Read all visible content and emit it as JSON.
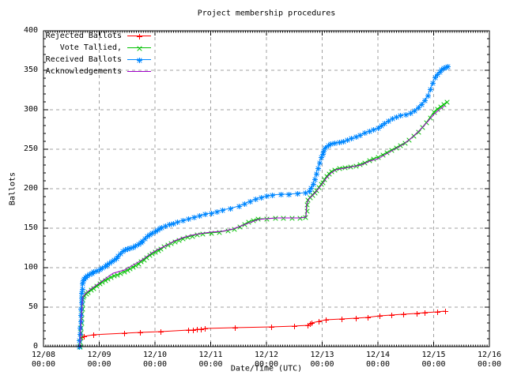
{
  "chart_data": {
    "type": "line",
    "title": "Project membership procedures",
    "xlabel": "Date/Time (UTC)",
    "ylabel": "Ballots",
    "ylim": [
      0,
      400
    ],
    "y_major_step": 50,
    "y_minor_step": 10,
    "x_range_days": 8,
    "x_minor_per_day": 24,
    "grid": true,
    "grid_color": "#a0a0a0",
    "legend_position": "top-left",
    "x_ticks": [
      {
        "date": "12/08",
        "time": "00:00"
      },
      {
        "date": "12/09",
        "time": "00:00"
      },
      {
        "date": "12/10",
        "time": "00:00"
      },
      {
        "date": "12/11",
        "time": "00:00"
      },
      {
        "date": "12/12",
        "time": "00:00"
      },
      {
        "date": "12/13",
        "time": "00:00"
      },
      {
        "date": "12/14",
        "time": "00:00"
      },
      {
        "date": "12/15",
        "time": "00:00"
      },
      {
        "date": "12/16",
        "time": "00:00"
      }
    ],
    "y_ticks": [
      0,
      50,
      100,
      150,
      200,
      250,
      300,
      350,
      400
    ],
    "x_unit_note": "x values are fractional days after 12/08 00:00 UTC",
    "series": [
      {
        "name": "Rejected Ballots",
        "color": "#ff0000",
        "marker": "plus",
        "x": [
          0.68,
          0.73,
          0.89,
          1.45,
          1.73,
          2.1,
          2.6,
          2.68,
          2.75,
          2.82,
          2.9,
          3.43,
          4.09,
          4.5,
          4.74,
          4.78,
          4.81,
          4.94,
          5.06,
          5.35,
          5.6,
          5.81,
          6.03,
          6.24,
          6.45,
          6.69,
          6.83,
          7.06,
          7.2
        ],
        "y": [
          12,
          13,
          15,
          17,
          18,
          19,
          21,
          21,
          22,
          22,
          23,
          24,
          25,
          26,
          27,
          29,
          30,
          32,
          34,
          35,
          36,
          37,
          39,
          40,
          41,
          42,
          43,
          44,
          45
        ]
      },
      {
        "name": "Vote Tallied,",
        "color": "#00c000",
        "marker": "cross",
        "x": [
          0.65,
          0.655,
          0.66,
          0.665,
          0.67,
          0.675,
          0.68,
          0.685,
          0.69,
          0.695,
          0.7,
          0.71,
          0.73,
          0.76,
          0.8,
          0.85,
          0.9,
          0.95,
          1.0,
          1.05,
          1.1,
          1.15,
          1.2,
          1.26,
          1.32,
          1.38,
          1.44,
          1.5,
          1.55,
          1.6,
          1.65,
          1.7,
          1.75,
          1.8,
          1.85,
          1.9,
          1.95,
          2.0,
          2.05,
          2.1,
          2.16,
          2.22,
          2.28,
          2.35,
          2.42,
          2.5,
          2.58,
          2.66,
          2.75,
          2.85,
          3.0,
          3.15,
          3.3,
          3.42,
          3.52,
          3.6,
          3.68,
          3.76,
          3.85,
          4.0,
          4.15,
          4.3,
          4.45,
          4.6,
          4.7,
          4.72,
          4.73,
          4.74,
          4.78,
          4.82,
          4.86,
          4.9,
          4.94,
          4.98,
          5.0,
          5.04,
          5.08,
          5.12,
          5.16,
          5.22,
          5.3,
          5.4,
          5.5,
          5.6,
          5.68,
          5.76,
          5.84,
          5.92,
          6.0,
          6.08,
          6.16,
          6.24,
          6.32,
          6.4,
          6.48,
          6.56,
          6.64,
          6.72,
          6.8,
          6.87,
          6.93,
          7.0,
          7.06,
          7.12,
          7.18,
          7.24
        ],
        "y": [
          0,
          6,
          12,
          18,
          24,
          30,
          36,
          42,
          48,
          54,
          60,
          63,
          65,
          67,
          69,
          72,
          74,
          77,
          80,
          82,
          84,
          86,
          88,
          90,
          91,
          93,
          95,
          97,
          99,
          101,
          103,
          105,
          108,
          110,
          113,
          116,
          118,
          120,
          122,
          124,
          127,
          129,
          131,
          133,
          135,
          137,
          139,
          140,
          142,
          143,
          144,
          145,
          147,
          149,
          152,
          155,
          158,
          160,
          162,
          162,
          163,
          163,
          163,
          163,
          164,
          172,
          180,
          186,
          189,
          192,
          195,
          198,
          202,
          206,
          208,
          212,
          216,
          219,
          222,
          224,
          226,
          227,
          228,
          229,
          231,
          233,
          236,
          238,
          240,
          243,
          246,
          249,
          252,
          255,
          258,
          262,
          267,
          272,
          278,
          284,
          290,
          297,
          301,
          304,
          307,
          310
        ]
      },
      {
        "name": "Received Ballots",
        "color": "#0087ff",
        "marker": "asterisk",
        "x": [
          0.64,
          0.645,
          0.65,
          0.655,
          0.66,
          0.665,
          0.67,
          0.675,
          0.68,
          0.685,
          0.69,
          0.7,
          0.71,
          0.73,
          0.75,
          0.78,
          0.82,
          0.86,
          0.9,
          0.95,
          1.0,
          1.05,
          1.1,
          1.14,
          1.18,
          1.22,
          1.26,
          1.3,
          1.34,
          1.38,
          1.42,
          1.46,
          1.5,
          1.55,
          1.6,
          1.65,
          1.7,
          1.74,
          1.78,
          1.82,
          1.86,
          1.9,
          1.94,
          2.0,
          2.04,
          2.08,
          2.12,
          2.18,
          2.25,
          2.32,
          2.4,
          2.5,
          2.6,
          2.7,
          2.8,
          2.9,
          3.0,
          3.1,
          3.2,
          3.35,
          3.5,
          3.6,
          3.7,
          3.8,
          3.9,
          4.0,
          4.1,
          4.25,
          4.4,
          4.55,
          4.7,
          4.76,
          4.8,
          4.83,
          4.86,
          4.89,
          4.92,
          4.95,
          4.98,
          5.0,
          5.02,
          5.05,
          5.1,
          5.15,
          5.22,
          5.3,
          5.38,
          5.45,
          5.52,
          5.6,
          5.68,
          5.76,
          5.84,
          5.92,
          6.0,
          6.06,
          6.12,
          6.18,
          6.25,
          6.32,
          6.4,
          6.5,
          6.58,
          6.65,
          6.72,
          6.78,
          6.84,
          6.89,
          6.94,
          6.98,
          7.02,
          7.06,
          7.1,
          7.14,
          7.18,
          7.22,
          7.25
        ],
        "y": [
          0,
          8,
          16,
          24,
          32,
          40,
          48,
          56,
          62,
          68,
          73,
          80,
          84,
          86,
          88,
          90,
          92,
          93,
          95,
          96,
          98,
          100,
          102,
          104,
          106,
          108,
          110,
          112,
          115,
          118,
          121,
          123,
          124,
          125,
          126,
          128,
          130,
          132,
          134,
          137,
          140,
          142,
          144,
          146,
          148,
          150,
          151,
          153,
          155,
          156,
          158,
          160,
          162,
          164,
          166,
          168,
          169,
          171,
          173,
          175,
          178,
          181,
          184,
          187,
          189,
          191,
          192,
          193,
          193,
          194,
          195,
          197,
          201,
          206,
          212,
          219,
          226,
          233,
          240,
          244,
          248,
          252,
          255,
          257,
          258,
          259,
          260,
          262,
          264,
          266,
          268,
          271,
          273,
          275,
          277,
          280,
          283,
          286,
          289,
          291,
          293,
          294,
          296,
          299,
          303,
          307,
          312,
          318,
          326,
          334,
          341,
          345,
          348,
          351,
          353,
          354,
          355
        ]
      },
      {
        "name": "Acknowledgements",
        "color": "#a000c8",
        "marker": "none",
        "x": [
          0.65,
          0.7,
          0.75,
          0.85,
          0.95,
          1.05,
          1.15,
          1.25,
          1.35,
          1.45,
          1.55,
          1.65,
          1.75,
          1.85,
          1.95,
          2.05,
          2.2,
          2.35,
          2.5,
          2.65,
          2.8,
          3.0,
          3.2,
          3.4,
          3.55,
          3.7,
          3.85,
          4.0,
          4.2,
          4.4,
          4.6,
          4.71,
          4.72,
          4.76,
          4.82,
          4.9,
          5.0,
          5.08,
          5.16,
          5.25,
          5.4,
          5.55,
          5.7,
          5.85,
          6.0,
          6.15,
          6.3,
          6.45,
          6.6,
          6.75,
          6.88,
          7.0,
          7.1,
          7.2
        ],
        "y": [
          0,
          62,
          67,
          73,
          78,
          83,
          88,
          93,
          95,
          97,
          101,
          105,
          109,
          114,
          119,
          123,
          128,
          134,
          138,
          141,
          143,
          145,
          146,
          149,
          153,
          157,
          161,
          162,
          163,
          163,
          163,
          164,
          180,
          187,
          191,
          197,
          206,
          214,
          220,
          224,
          226,
          228,
          230,
          235,
          238,
          244,
          250,
          256,
          264,
          274,
          284,
          294,
          300,
          305
        ]
      }
    ]
  }
}
